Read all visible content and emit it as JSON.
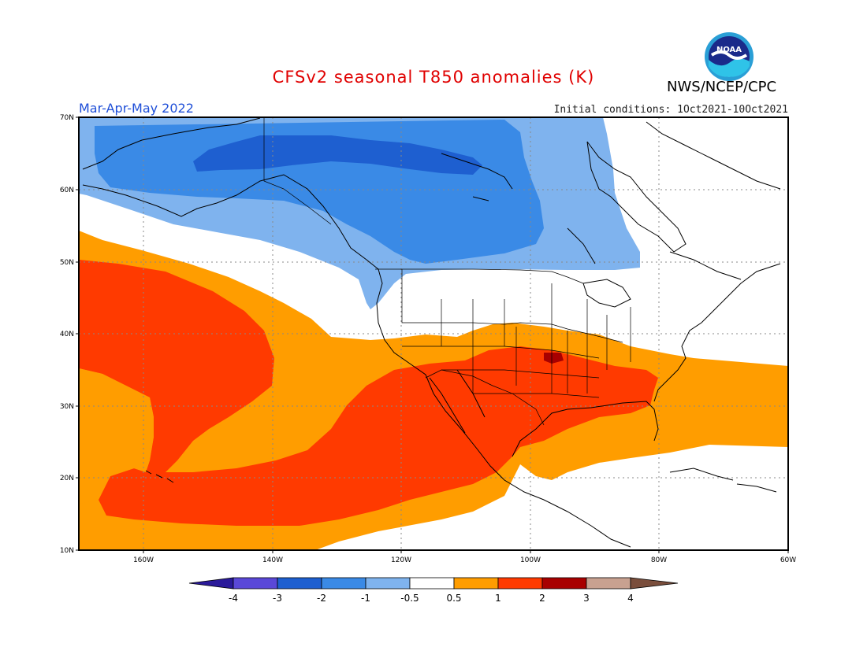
{
  "title": "CFSv2 seasonal T850 anomalies (K)",
  "season": "Mar-Apr-May 2022",
  "initial_conditions": "Initial conditions: 1Oct2021-10Oct2021",
  "credit": "NWS/NCEP/CPC",
  "logo_text": "NOAA",
  "map": {
    "region": "North America & NE Pacific",
    "lon_range": [
      -172,
      -60
    ],
    "lat_range": [
      10,
      70
    ],
    "lat_ticks": [
      "70N",
      "60N",
      "50N",
      "40N",
      "30N",
      "20N",
      "10N"
    ],
    "lon_ticks": [
      "160W",
      "140W",
      "120W",
      "100W",
      "80W",
      "60W"
    ]
  },
  "colorbar": {
    "labels": [
      "-4",
      "-3",
      "-2",
      "-1",
      "-0.5",
      "0.5",
      "1",
      "2",
      "3",
      "4"
    ],
    "colors": [
      "#2a1a9a",
      "#5a48d8",
      "#1e5fd0",
      "#3a8ae6",
      "#7fb3ee",
      "#ffffff",
      "#ff9d00",
      "#ff3a00",
      "#a80000",
      "#c8a190",
      "#7a4e3c"
    ]
  }
}
